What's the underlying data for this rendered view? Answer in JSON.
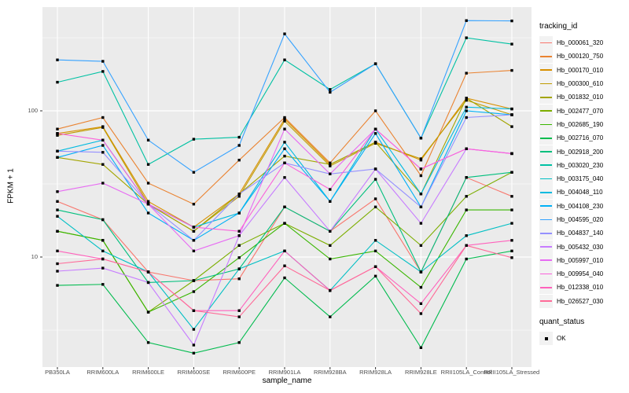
{
  "figure": {
    "background": "#FFFFFF",
    "panel_background": "#EBEBEB",
    "grid_color": "#FFFFFF",
    "tick_color": "#333333",
    "tick_label_color": "#4D4D4D",
    "point_color": "#000000"
  },
  "axes": {
    "x_label": "sample_name",
    "y_label": "FPKM + 1",
    "y_ticks": [
      "100",
      "10"
    ]
  },
  "legend": {
    "tracking_title": "tracking_id",
    "quant_title": "quant_status",
    "quant_items": [
      {
        "label": "OK",
        "symbol": "black-square"
      }
    ]
  },
  "chart_data": {
    "type": "line",
    "title": "",
    "xlabel": "sample_name",
    "ylabel": "FPKM + 1",
    "y_scale": "log10",
    "ylim": [
      1.8,
      510
    ],
    "y_major_gridlines": [
      10,
      100
    ],
    "y_minor_gridlines": [
      3.162,
      31.62,
      316.2
    ],
    "grid": true,
    "legend_position": "right",
    "point_shape": "square",
    "x": [
      "PB350LA",
      "RRIM600LA",
      "RRIM600LE",
      "RRIM600SE",
      "RRIM600PE",
      "RRIM901LA",
      "RRIM928BA",
      "RRIM928LA",
      "RRIM928LE",
      "RRII105LA_Control",
      "RRII105LA_Stressed"
    ],
    "series": [
      {
        "name": "Hb_000061_320",
        "color": "#F8766D",
        "values": [
          24,
          18,
          7.9,
          6.9,
          7.1,
          22,
          15,
          25,
          7.9,
          35,
          26
        ]
      },
      {
        "name": "Hb_000120_750",
        "color": "#EA8331",
        "values": [
          75,
          90,
          32,
          23,
          46,
          90,
          44,
          100,
          36,
          181,
          189
        ]
      },
      {
        "name": "Hb_000170_010",
        "color": "#D89000",
        "values": [
          70,
          78,
          24,
          16,
          27,
          88,
          43,
          61,
          46,
          122,
          103
        ]
      },
      {
        "name": "Hb_000300_610",
        "color": "#C09B00",
        "values": [
          68,
          77,
          23,
          15,
          26,
          85,
          42,
          60,
          47,
          118,
          94
        ]
      },
      {
        "name": "Hb_001832_010",
        "color": "#A3A500",
        "values": [
          48,
          43,
          23,
          15,
          27,
          49,
          43,
          61,
          27,
          122,
          78
        ]
      },
      {
        "name": "Hb_002477_070",
        "color": "#7CAE00",
        "values": [
          15,
          13,
          4.2,
          6.9,
          12,
          17,
          12,
          22,
          12,
          26,
          38
        ]
      },
      {
        "name": "Hb_002685_190",
        "color": "#39B600",
        "values": [
          15,
          13,
          4.2,
          5.8,
          9.9,
          17,
          9.7,
          11,
          6.2,
          21,
          21
        ]
      },
      {
        "name": "Hb_002716_070",
        "color": "#00BB4E",
        "values": [
          6.4,
          6.5,
          2.6,
          2.2,
          2.6,
          7.2,
          3.9,
          7.4,
          2.4,
          9.7,
          11
        ]
      },
      {
        "name": "Hb_002918_200",
        "color": "#00BF7D",
        "values": [
          21,
          18,
          6.7,
          6.9,
          8.3,
          22,
          15,
          34,
          7.9,
          35,
          38
        ]
      },
      {
        "name": "Hb_003020_230",
        "color": "#00C1A3",
        "values": [
          157,
          186,
          43,
          64,
          66,
          223,
          140,
          210,
          65,
          316,
          286
        ]
      },
      {
        "name": "Hb_003175_040",
        "color": "#00BFC4",
        "values": [
          19,
          11,
          7.9,
          3.2,
          8.3,
          11,
          5.9,
          13,
          7.9,
          14,
          17
        ]
      },
      {
        "name": "Hb_004048_110",
        "color": "#00BAE0",
        "values": [
          53,
          63,
          23,
          16,
          20,
          61,
          24,
          75,
          27,
          106,
          103
        ]
      },
      {
        "name": "Hb_004108_230",
        "color": "#00B0F6",
        "values": [
          48,
          58,
          20,
          13,
          20,
          55,
          24,
          70,
          22,
          100,
          94
        ]
      },
      {
        "name": "Hb_004595_020",
        "color": "#35A2FF",
        "values": [
          223,
          218,
          63,
          38,
          58,
          336,
          134,
          210,
          65,
          414,
          412
        ]
      },
      {
        "name": "Hb_004837_140",
        "color": "#9590FF",
        "values": [
          53,
          52,
          23,
          13,
          27,
          44,
          37,
          40,
          22,
          90,
          94
        ]
      },
      {
        "name": "Hb_005432_030",
        "color": "#C77CFF",
        "values": [
          8,
          8.4,
          6.7,
          2.5,
          14,
          35,
          15,
          40,
          17,
          55,
          51
        ]
      },
      {
        "name": "Hb_005997_010",
        "color": "#E76BF3",
        "values": [
          28,
          32,
          23,
          11,
          14,
          75,
          37,
          75,
          40,
          55,
          51
        ]
      },
      {
        "name": "Hb_009954_040",
        "color": "#FA62DB",
        "values": [
          70,
          63,
          23,
          16,
          15,
          44,
          29,
          75,
          40,
          55,
          51
        ]
      },
      {
        "name": "Hb_012338_010",
        "color": "#FF62BC",
        "values": [
          11,
          9.7,
          7.9,
          4.3,
          4.3,
          11,
          5.9,
          8.6,
          4.8,
          12,
          13
        ]
      },
      {
        "name": "Hb_026527_030",
        "color": "#FF6A98",
        "values": [
          9,
          9.7,
          7.9,
          4.3,
          3.9,
          8.7,
          5.9,
          8.6,
          4.1,
          12,
          9.9
        ]
      }
    ]
  }
}
